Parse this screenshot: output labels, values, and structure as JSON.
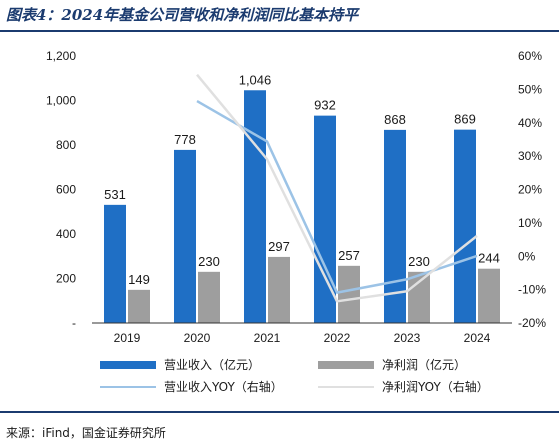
{
  "header": {
    "title": "图表4：2024年基金公司营收和净利润同比基本持平"
  },
  "footer": {
    "source": "来源：iFind，国金证券研究所"
  },
  "chart_data": {
    "type": "bar",
    "categories": [
      "2019",
      "2020",
      "2021",
      "2022",
      "2023",
      "2024"
    ],
    "series": [
      {
        "name": "营业收入（亿元）",
        "kind": "bar",
        "axis": "left",
        "color": "#1f6fc5",
        "values": [
          531,
          778,
          1046,
          932,
          868,
          869
        ],
        "labels": [
          "531",
          "778",
          "1,046",
          "932",
          "868",
          "869"
        ]
      },
      {
        "name": "净利润（亿元）",
        "kind": "bar",
        "axis": "left",
        "color": "#9e9e9e",
        "values": [
          149,
          230,
          297,
          257,
          230,
          244
        ],
        "labels": [
          "149",
          "230",
          "297",
          "257",
          "230",
          "244"
        ]
      },
      {
        "name": "营业收入YOY（右轴）",
        "kind": "line",
        "axis": "right",
        "color": "#9cc3e6",
        "values": [
          null,
          46.5,
          34.4,
          -10.9,
          -6.9,
          0.1
        ]
      },
      {
        "name": "净利润YOY（右轴）",
        "kind": "line",
        "axis": "right",
        "color": "#e0e0e0",
        "values": [
          null,
          54.4,
          29.1,
          -13.5,
          -10.5,
          6.1
        ]
      }
    ],
    "y_left": {
      "ticks": [
        "-",
        "200",
        "400",
        "600",
        "800",
        "1,000",
        "1,200"
      ],
      "ylim": [
        0,
        1200
      ]
    },
    "y_right": {
      "ticks": [
        "-20%",
        "-10%",
        "0%",
        "10%",
        "20%",
        "30%",
        "40%",
        "50%",
        "60%"
      ],
      "ylim": [
        -20,
        60
      ]
    },
    "legend": "bottom",
    "grid": false
  }
}
